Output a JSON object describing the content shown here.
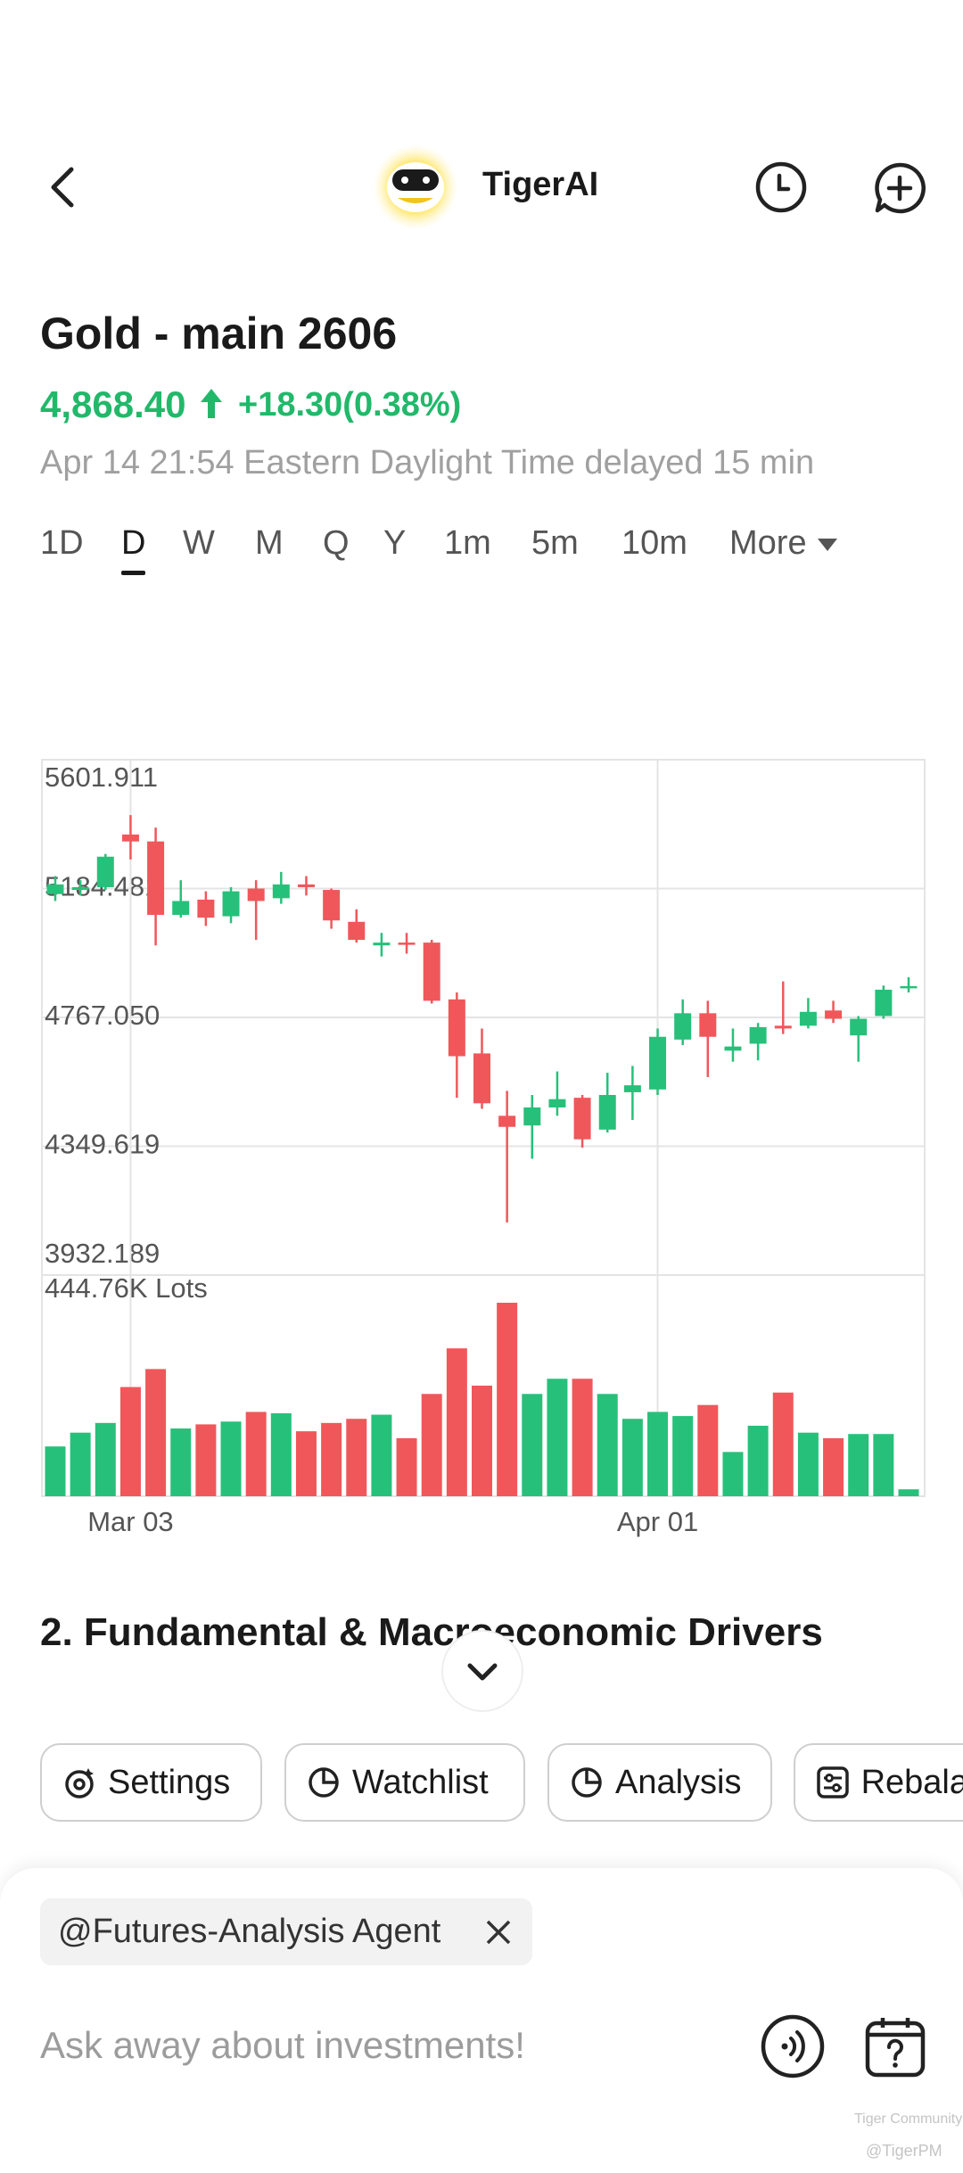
{
  "header": {
    "title": "TigerAI"
  },
  "quote": {
    "name": "Gold - main 2606",
    "price": "4,868.40",
    "change": "+18.30(0.38%)",
    "time": "Apr 14 21:54 Eastern Daylight Time delayed 15 min"
  },
  "periods": {
    "items": [
      "1D",
      "D",
      "W",
      "M",
      "Q",
      "Y",
      "1m",
      "5m",
      "10m",
      "More"
    ],
    "selected": 1
  },
  "chart_data": {
    "type": "candlestick",
    "categories": [
      null,
      null,
      null,
      "Mar 03",
      null,
      null,
      null,
      null,
      null,
      null,
      null,
      null,
      null,
      null,
      null,
      null,
      null,
      null,
      null,
      null,
      null,
      null,
      null,
      null,
      "Apr 01",
      null,
      null,
      null,
      null,
      null,
      null,
      null,
      null,
      null,
      null
    ],
    "open": [
      5166.5,
      5180.0,
      5188.9,
      5359.5,
      5337.1,
      5099.2,
      5148.6,
      5094.7,
      5184.5,
      5153.1,
      5197.9,
      5180.0,
      5076.7,
      5000.4,
      5009.4,
      5009.4,
      4825.4,
      4650.3,
      4448.3,
      4416.9,
      4475.3,
      4506.7,
      4403.5,
      4524.6,
      4533.6,
      4695.2,
      4780.5,
      4659.3,
      4681.8,
      4740.1,
      4740.1,
      4789.5,
      4708.7,
      4771.5,
      4861.3
    ],
    "high": [
      5224.9,
      5211.4,
      5296.7,
      5422.4,
      5382.0,
      5211.4,
      5175.5,
      5188.9,
      5211.4,
      5238.3,
      5224.9,
      5184.5,
      5117.1,
      5040.8,
      5040.8,
      5018.4,
      4847.8,
      4731.1,
      4529.1,
      4515.7,
      4592.0,
      4515.7,
      4587.5,
      4609.9,
      4731.1,
      4825.4,
      4820.9,
      4731.1,
      4749.1,
      4883.7,
      4829.9,
      4820.9,
      4771.5,
      4870.3,
      4897.2
    ],
    "low": [
      5144.1,
      5162.0,
      5180.0,
      5278.7,
      5000.4,
      5090.2,
      5063.3,
      5072.3,
      5018.4,
      5135.1,
      5162.0,
      5054.3,
      5009.4,
      4964.5,
      4973.5,
      4811.9,
      4506.7,
      4470.8,
      4102.8,
      4309.2,
      4448.3,
      4345.1,
      4394.5,
      4434.9,
      4515.7,
      4677.3,
      4574.0,
      4623.4,
      4627.9,
      4713.2,
      4731.1,
      4749.1,
      4623.4,
      4762.6,
      4847.8
    ],
    "close": [
      5197.9,
      5188.9,
      5287.7,
      5337.1,
      5099.2,
      5144.1,
      5090.2,
      5175.5,
      5144.1,
      5197.9,
      5188.9,
      5081.2,
      5018.4,
      5009.4,
      5004.9,
      4820.9,
      4641.4,
      4488.7,
      4412.4,
      4475.3,
      4502.2,
      4372.1,
      4515.7,
      4547.1,
      4704.2,
      4780.5,
      4704.2,
      4672.8,
      4735.6,
      4731.1,
      4785.0,
      4762.6,
      4762.6,
      4856.8,
      4868.4
    ],
    "ylim": [
      3932.189,
      5601.911
    ],
    "yticks": [
      5601.911,
      5184.481,
      {
        "value": 4767.05,
        "label": "4767.050"
      },
      4349.619,
      3932.189
    ],
    "up_color": "#27c07a",
    "down_color": "#f0575a",
    "grid": true,
    "volume": {
      "values": [
        114.4,
        146.1,
        168.4,
        251.0,
        292.3,
        155.7,
        165.2,
        171.6,
        193.8,
        190.6,
        149.3,
        168.4,
        177.9,
        187.4,
        133.4,
        235.1,
        339.9,
        254.2,
        444.76,
        235.1,
        270.0,
        270.0,
        235.1,
        177.9,
        193.8,
        184.3,
        209.7,
        101.7,
        162.0,
        238.3,
        146.1,
        133.4,
        143.0,
        143.0,
        15.9
      ],
      "ylim": [
        0,
        444.76
      ],
      "yticks": [
        {
          "value": 444.76,
          "label": "444.76K Lots"
        }
      ]
    }
  },
  "section": {
    "heading": "2. Fundamental & Macroeconomic Drivers"
  },
  "chips": [
    "Settings",
    "Watchlist",
    "Analysis",
    "Rebala"
  ],
  "input": {
    "tag": "@Futures-Analysis Agent",
    "placeholder": "Ask away about investments!"
  },
  "watermark": {
    "brand": "Tiger Community",
    "handle": "@TigerPM"
  }
}
